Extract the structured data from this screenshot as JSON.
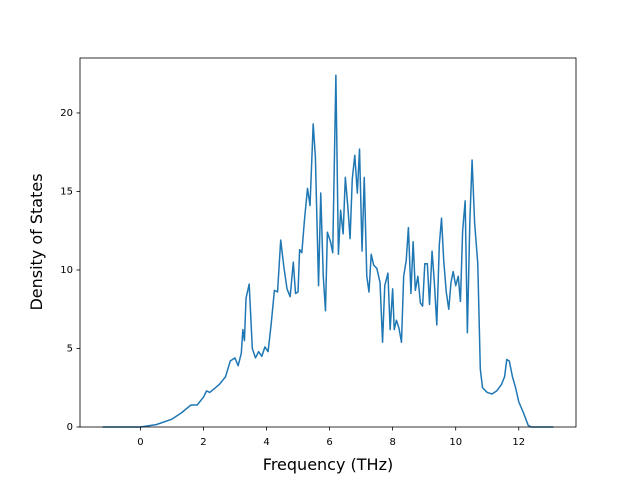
{
  "chart_data": {
    "type": "line",
    "x_label": "Frequency (THz)",
    "y_label": "Density of States",
    "xlim": [
      -1.915,
      13.815
    ],
    "ylim": [
      0,
      23.5
    ],
    "xticks": [
      0,
      2,
      4,
      6,
      8,
      10,
      12
    ],
    "yticks": [
      0,
      5,
      10,
      15,
      20
    ],
    "grid": false,
    "series": [
      {
        "color": "#1f77b4",
        "x": [
          -1.2,
          0,
          0.5,
          1.0,
          1.3,
          1.6,
          1.8,
          2.0,
          2.1,
          2.2,
          2.5,
          2.7,
          2.85,
          3.0,
          3.1,
          3.2,
          3.25,
          3.3,
          3.35,
          3.45,
          3.55,
          3.65,
          3.75,
          3.85,
          3.95,
          4.05,
          4.15,
          4.25,
          4.35,
          4.45,
          4.55,
          4.65,
          4.75,
          4.85,
          4.92,
          5.0,
          5.05,
          5.12,
          5.2,
          5.3,
          5.38,
          5.48,
          5.55,
          5.65,
          5.72,
          5.8,
          5.87,
          5.93,
          6.03,
          6.1,
          6.2,
          6.28,
          6.35,
          6.43,
          6.5,
          6.58,
          6.65,
          6.72,
          6.8,
          6.88,
          6.95,
          7.03,
          7.1,
          7.18,
          7.25,
          7.32,
          7.4,
          7.5,
          7.6,
          7.68,
          7.75,
          7.85,
          7.92,
          8.0,
          8.05,
          8.12,
          8.2,
          8.28,
          8.35,
          8.43,
          8.5,
          8.58,
          8.65,
          8.72,
          8.8,
          8.88,
          8.95,
          9.02,
          9.1,
          9.17,
          9.25,
          9.32,
          9.4,
          9.48,
          9.55,
          9.62,
          9.7,
          9.78,
          9.85,
          9.92,
          10.0,
          10.08,
          10.15,
          10.22,
          10.3,
          10.37,
          10.45,
          10.52,
          10.6,
          10.7,
          10.78,
          10.85,
          11.0,
          11.15,
          11.3,
          11.45,
          11.55,
          11.62,
          11.7,
          11.8,
          11.9,
          12.0,
          12.15,
          12.3,
          12.4,
          13.1
        ],
        "values": [
          0,
          0,
          0.15,
          0.5,
          0.9,
          1.4,
          1.4,
          1.9,
          2.3,
          2.2,
          2.7,
          3.2,
          4.2,
          4.4,
          3.9,
          4.7,
          6.2,
          5.5,
          8.2,
          9.1,
          5.0,
          4.4,
          4.8,
          4.5,
          5.1,
          4.8,
          6.6,
          8.7,
          8.6,
          11.9,
          10.2,
          8.8,
          8.3,
          10.5,
          8.5,
          8.6,
          11.3,
          11.1,
          13.1,
          15.2,
          14.1,
          19.3,
          17.2,
          9.0,
          14.9,
          9.6,
          7.4,
          12.4,
          11.8,
          11.1,
          22.4,
          11.0,
          13.8,
          12.3,
          15.9,
          14.0,
          12.0,
          15.8,
          17.3,
          14.9,
          17.7,
          11.2,
          15.9,
          9.6,
          8.6,
          11.0,
          10.3,
          10.1,
          9.2,
          5.4,
          9.0,
          9.8,
          6.2,
          8.8,
          6.2,
          6.8,
          6.3,
          5.4,
          9.6,
          10.6,
          12.7,
          8.5,
          11.8,
          8.7,
          9.6,
          7.9,
          7.7,
          10.4,
          10.4,
          7.8,
          11.2,
          9.3,
          6.5,
          11.6,
          13.3,
          10.6,
          8.6,
          7.5,
          9.2,
          9.9,
          9.0,
          9.6,
          8.0,
          12.5,
          14.4,
          6.0,
          13.2,
          17.0,
          13.0,
          10.4,
          3.7,
          2.5,
          2.2,
          2.1,
          2.3,
          2.7,
          3.2,
          4.3,
          4.2,
          3.2,
          2.5,
          1.6,
          0.9,
          0.1,
          0,
          0
        ]
      }
    ]
  }
}
